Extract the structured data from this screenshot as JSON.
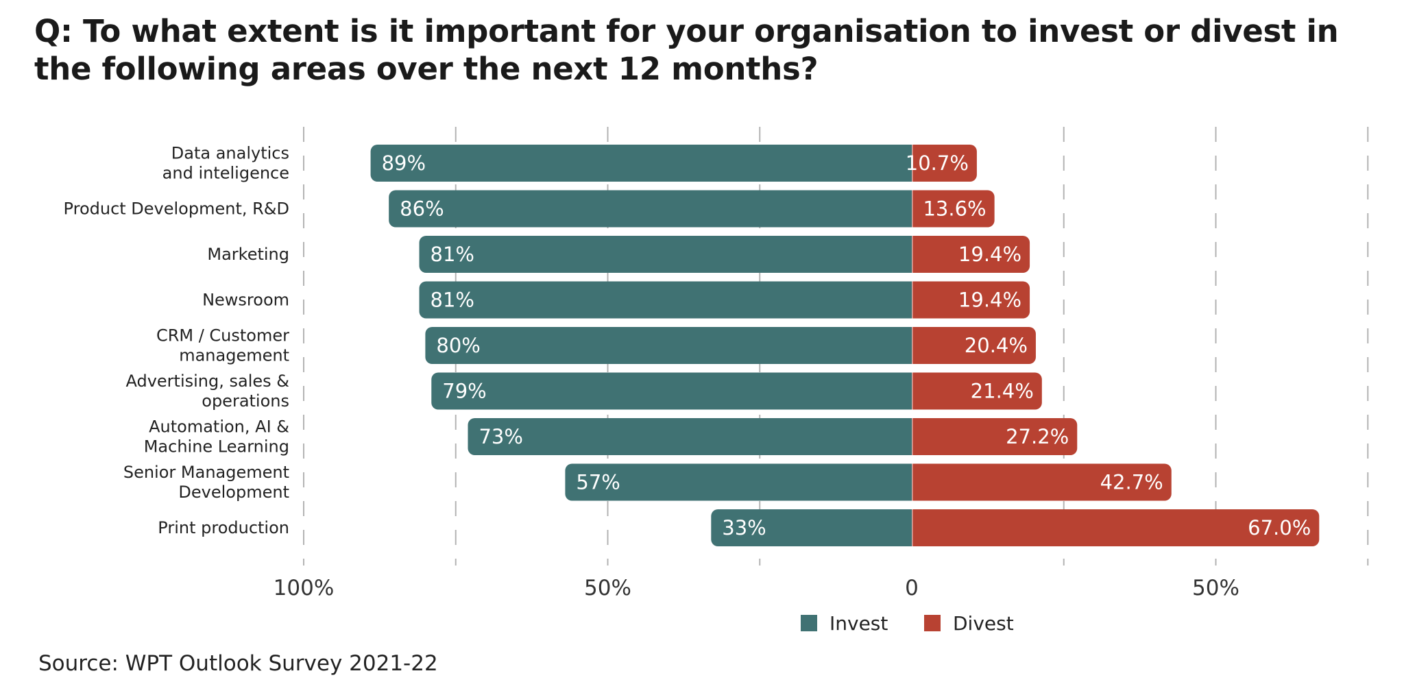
{
  "title": "Q: To what extent is it important for your organisation to invest or divest in the following areas over the next 12 months?",
  "source": "Source: WPT Outlook Survey 2021-22",
  "colors": {
    "invest": "#407273",
    "divest": "#b84232",
    "grid": "#b3b3b3",
    "zero_line": "#888888"
  },
  "chart_data": {
    "type": "bar",
    "orientation": "horizontal-diverging",
    "title": "Q: To what extent is it important for your organisation to invest or divest in the following areas over the next 12 months?",
    "categories": [
      [
        "Data analytics",
        "and inteligence"
      ],
      [
        "Product Development, R&D"
      ],
      [
        "Marketing"
      ],
      [
        "Newsroom"
      ],
      [
        "CRM / Customer",
        "management"
      ],
      [
        "Advertising, sales &",
        "operations"
      ],
      [
        "Automation, AI &",
        "Machine Learning"
      ],
      [
        "Senior Management",
        "Development"
      ],
      [
        "Print production"
      ]
    ],
    "series": [
      {
        "name": "Invest",
        "values": [
          89,
          86,
          81,
          81,
          80,
          79,
          73,
          57,
          33
        ],
        "labels": [
          "89%",
          "86%",
          "81%",
          "81%",
          "80%",
          "79%",
          "73%",
          "57%",
          "33%"
        ]
      },
      {
        "name": "Divest",
        "values": [
          10.7,
          13.6,
          19.4,
          19.4,
          20.4,
          21.4,
          27.2,
          42.7,
          67.0
        ],
        "labels": [
          "10.7%",
          "13.6%",
          "19.4%",
          "19.4%",
          "20.4%",
          "21.4%",
          "27.2%",
          "42.7%",
          "67.0%"
        ]
      }
    ],
    "xlim": [
      -100,
      75
    ],
    "xticks": [
      {
        "value": -100,
        "label": "100%"
      },
      {
        "value": -50,
        "label": "50%"
      },
      {
        "value": 0,
        "label": "0"
      },
      {
        "value": 50,
        "label": "50%"
      }
    ],
    "gridlines": [
      -100,
      -75,
      -50,
      -25,
      0,
      25,
      50,
      75
    ],
    "grid": true,
    "legend": {
      "placement": "bottom-center",
      "entries": [
        "Invest",
        "Divest"
      ]
    }
  }
}
